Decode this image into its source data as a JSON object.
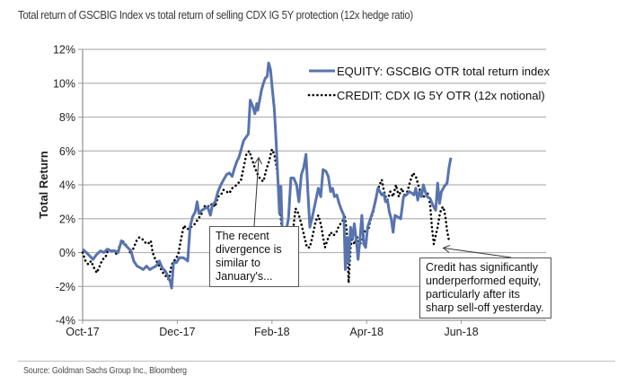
{
  "chart_data": {
    "type": "line",
    "title": "Total return of GSCBIG Index vs total return of selling CDX IG 5Y protection (12x hedge ratio)",
    "xlabel": "",
    "ylabel": "Total Return",
    "x_unit": "months since Oct-17",
    "xlim": [
      0,
      8.4
    ],
    "ylim": [
      -4,
      12
    ],
    "y_ticks": [
      -4,
      -2,
      0,
      2,
      4,
      6,
      8,
      10,
      12
    ],
    "y_tick_labels": [
      "-4%",
      "-2%",
      "0%",
      "2%",
      "4%",
      "6%",
      "8%",
      "10%",
      "12%"
    ],
    "x_ticks": [
      0,
      2,
      4,
      6,
      8
    ],
    "x_tick_labels": [
      "Oct-17",
      "Dec-17",
      "Feb-18",
      "Apr-18",
      "Jun-18"
    ],
    "grid": true,
    "legend_position": "top-right",
    "series": [
      {
        "name": "EQUITY: GSCBIG OTR total return index",
        "style": "solid",
        "color": "#5873AE",
        "points": [
          [
            0.0,
            0.2
          ],
          [
            0.08,
            0.0
          ],
          [
            0.15,
            -0.2
          ],
          [
            0.22,
            -0.4
          ],
          [
            0.3,
            -0.1
          ],
          [
            0.38,
            0.1
          ],
          [
            0.45,
            0.0
          ],
          [
            0.52,
            0.2
          ],
          [
            0.6,
            0.1
          ],
          [
            0.68,
            0.1
          ],
          [
            0.75,
            0.0
          ],
          [
            0.82,
            0.7
          ],
          [
            0.88,
            0.5
          ],
          [
            0.95,
            0.3
          ],
          [
            1.02,
            0.1
          ],
          [
            1.08,
            -0.5
          ],
          [
            1.15,
            -0.8
          ],
          [
            1.22,
            -0.9
          ],
          [
            1.28,
            -1.0
          ],
          [
            1.35,
            -0.8
          ],
          [
            1.42,
            -1.0
          ],
          [
            1.48,
            -0.9
          ],
          [
            1.55,
            -0.8
          ],
          [
            1.62,
            -0.5
          ],
          [
            1.68,
            -0.9
          ],
          [
            1.75,
            -1.1
          ],
          [
            1.8,
            -1.4
          ],
          [
            1.85,
            -1.7
          ],
          [
            1.88,
            -2.1
          ],
          [
            1.92,
            -0.6
          ],
          [
            1.98,
            -0.6
          ],
          [
            2.05,
            -0.3
          ],
          [
            2.12,
            -0.3
          ],
          [
            2.18,
            -0.4
          ],
          [
            2.22,
            -0.5
          ],
          [
            2.27,
            1.5
          ],
          [
            2.32,
            2.1
          ],
          [
            2.38,
            2.4
          ],
          [
            2.42,
            3.0
          ],
          [
            2.46,
            2.3
          ],
          [
            2.52,
            2.5
          ],
          [
            2.58,
            2.6
          ],
          [
            2.64,
            2.7
          ],
          [
            2.7,
            2.2
          ],
          [
            2.74,
            2.8
          ],
          [
            2.8,
            3.0
          ],
          [
            2.86,
            3.6
          ],
          [
            2.92,
            4.0
          ],
          [
            2.98,
            4.3
          ],
          [
            3.04,
            4.6
          ],
          [
            3.1,
            4.7
          ],
          [
            3.16,
            4.5
          ],
          [
            3.2,
            4.9
          ],
          [
            3.26,
            5.4
          ],
          [
            3.3,
            5.6
          ],
          [
            3.36,
            6.2
          ],
          [
            3.4,
            6.6
          ],
          [
            3.45,
            6.8
          ],
          [
            3.5,
            7.0
          ],
          [
            3.54,
            9.0
          ],
          [
            3.6,
            8.6
          ],
          [
            3.64,
            8.2
          ],
          [
            3.68,
            8.8
          ],
          [
            3.7,
            8.4
          ],
          [
            3.74,
            9.0
          ],
          [
            3.78,
            9.6
          ],
          [
            3.82,
            10.0
          ],
          [
            3.86,
            10.3
          ],
          [
            3.9,
            10.4
          ],
          [
            3.93,
            11.2
          ],
          [
            3.97,
            10.8
          ],
          [
            4.01,
            9.6
          ],
          [
            4.05,
            8.5
          ],
          [
            4.09,
            6.5
          ],
          [
            4.13,
            4.0
          ],
          [
            4.16,
            2.3
          ],
          [
            4.19,
            3.9
          ],
          [
            4.22,
            1.0
          ],
          [
            4.25,
            0.5
          ],
          [
            4.3,
            1.3
          ],
          [
            4.35,
            2.0
          ],
          [
            4.4,
            4.4
          ],
          [
            4.46,
            4.4
          ],
          [
            4.52,
            4.0
          ],
          [
            4.57,
            3.0
          ],
          [
            4.62,
            4.6
          ],
          [
            4.67,
            5.0
          ],
          [
            4.72,
            5.8
          ],
          [
            4.76,
            3.5
          ],
          [
            4.8,
            1.5
          ],
          [
            4.86,
            2.2
          ],
          [
            4.92,
            3.0
          ],
          [
            4.98,
            3.8
          ],
          [
            5.03,
            3.3
          ],
          [
            5.08,
            4.9
          ],
          [
            5.14,
            4.8
          ],
          [
            5.19,
            4.5
          ],
          [
            5.24,
            3.6
          ],
          [
            5.28,
            3.8
          ],
          [
            5.32,
            3.3
          ],
          [
            5.37,
            3.4
          ],
          [
            5.42,
            2.9
          ],
          [
            5.47,
            2.5
          ],
          [
            5.52,
            2.2
          ],
          [
            5.55,
            -1.0
          ],
          [
            5.59,
            0.9
          ],
          [
            5.62,
            -0.6
          ],
          [
            5.66,
            1.5
          ],
          [
            5.7,
            0.8
          ],
          [
            5.74,
            1.7
          ],
          [
            5.78,
            0.8
          ],
          [
            5.82,
            -0.4
          ],
          [
            5.86,
            0.8
          ],
          [
            5.9,
            2.2
          ],
          [
            5.94,
            0.5
          ],
          [
            5.98,
            0.3
          ],
          [
            6.02,
            1.5
          ],
          [
            6.08,
            2.0
          ],
          [
            6.14,
            2.5
          ],
          [
            6.2,
            3.2
          ],
          [
            6.24,
            3.8
          ],
          [
            6.28,
            3.6
          ],
          [
            6.32,
            3.4
          ],
          [
            6.36,
            3.5
          ],
          [
            6.4,
            3.0
          ],
          [
            6.44,
            3.1
          ],
          [
            6.48,
            2.4
          ],
          [
            6.52,
            2.0
          ],
          [
            6.56,
            1.2
          ],
          [
            6.6,
            2.2
          ],
          [
            6.66,
            2.1
          ],
          [
            6.72,
            2.0
          ],
          [
            6.78,
            3.3
          ],
          [
            6.84,
            3.4
          ],
          [
            6.9,
            3.6
          ],
          [
            6.96,
            3.5
          ],
          [
            7.0,
            3.4
          ],
          [
            7.04,
            3.8
          ],
          [
            7.08,
            3.1
          ],
          [
            7.12,
            3.6
          ],
          [
            7.16,
            3.3
          ],
          [
            7.2,
            4.0
          ],
          [
            7.24,
            3.6
          ],
          [
            7.28,
            3.3
          ],
          [
            7.34,
            3.2
          ],
          [
            7.4,
            2.8
          ],
          [
            7.46,
            2.5
          ],
          [
            7.5,
            4.1
          ],
          [
            7.54,
            2.9
          ],
          [
            7.58,
            3.6
          ],
          [
            7.64,
            3.9
          ],
          [
            7.7,
            4.1
          ],
          [
            7.74,
            5.0
          ],
          [
            7.78,
            5.6
          ]
        ]
      },
      {
        "name": "CREDIT: CDX IG 5Y OTR (12x notional)",
        "style": "dotted",
        "color": "#000000",
        "points": [
          [
            0.0,
            0.0
          ],
          [
            0.06,
            -0.5
          ],
          [
            0.12,
            -0.7
          ],
          [
            0.18,
            -0.5
          ],
          [
            0.24,
            -0.9
          ],
          [
            0.3,
            -1.2
          ],
          [
            0.36,
            -0.8
          ],
          [
            0.42,
            -0.4
          ],
          [
            0.48,
            -0.3
          ],
          [
            0.54,
            0.2
          ],
          [
            0.6,
            0.1
          ],
          [
            0.66,
            0.1
          ],
          [
            0.72,
            -0.1
          ],
          [
            0.78,
            0.4
          ],
          [
            0.84,
            0.7
          ],
          [
            0.9,
            0.5
          ],
          [
            0.96,
            0.3
          ],
          [
            1.02,
            -0.1
          ],
          [
            1.08,
            0.3
          ],
          [
            1.14,
            0.7
          ],
          [
            1.2,
            0.9
          ],
          [
            1.26,
            0.8
          ],
          [
            1.32,
            0.6
          ],
          [
            1.38,
            0.5
          ],
          [
            1.44,
            0.7
          ],
          [
            1.48,
            0.0
          ],
          [
            1.52,
            -0.3
          ],
          [
            1.58,
            -0.6
          ],
          [
            1.64,
            -0.9
          ],
          [
            1.7,
            -1.2
          ],
          [
            1.76,
            -1.4
          ],
          [
            1.82,
            -1.6
          ],
          [
            1.86,
            -1.0
          ],
          [
            1.9,
            -0.6
          ],
          [
            1.96,
            -0.4
          ],
          [
            2.02,
            -0.1
          ],
          [
            2.08,
            0.8
          ],
          [
            2.14,
            1.6
          ],
          [
            2.2,
            1.4
          ],
          [
            2.26,
            1.4
          ],
          [
            2.32,
            1.6
          ],
          [
            2.38,
            1.7
          ],
          [
            2.44,
            2.0
          ],
          [
            2.5,
            2.2
          ],
          [
            2.56,
            2.7
          ],
          [
            2.62,
            2.8
          ],
          [
            2.68,
            2.7
          ],
          [
            2.74,
            2.9
          ],
          [
            2.8,
            2.7
          ],
          [
            2.86,
            3.3
          ],
          [
            2.92,
            3.4
          ],
          [
            2.98,
            3.7
          ],
          [
            3.04,
            3.6
          ],
          [
            3.1,
            3.5
          ],
          [
            3.16,
            3.8
          ],
          [
            3.22,
            3.9
          ],
          [
            3.28,
            4.1
          ],
          [
            3.34,
            4.2
          ],
          [
            3.4,
            5.0
          ],
          [
            3.46,
            5.8
          ],
          [
            3.52,
            6.0
          ],
          [
            3.58,
            5.5
          ],
          [
            3.64,
            5.0
          ],
          [
            3.7,
            4.6
          ],
          [
            3.76,
            4.3
          ],
          [
            3.82,
            4.2
          ],
          [
            3.88,
            4.9
          ],
          [
            3.94,
            5.4
          ],
          [
            4.0,
            6.1
          ],
          [
            4.05,
            5.8
          ],
          [
            4.1,
            5.0
          ],
          [
            4.15,
            3.6
          ],
          [
            4.19,
            1.9
          ],
          [
            4.22,
            1.0
          ],
          [
            4.25,
            0.4
          ],
          [
            4.28,
            -1.9
          ],
          [
            4.32,
            -1.6
          ],
          [
            4.36,
            0.0
          ],
          [
            4.4,
            0.7
          ],
          [
            4.45,
            1.4
          ],
          [
            4.5,
            2.6
          ],
          [
            4.56,
            2.3
          ],
          [
            4.62,
            1.7
          ],
          [
            4.68,
            1.0
          ],
          [
            4.74,
            0.3
          ],
          [
            4.8,
            0.3
          ],
          [
            4.86,
            1.0
          ],
          [
            4.92,
            1.8
          ],
          [
            4.98,
            2.2
          ],
          [
            5.04,
            1.6
          ],
          [
            5.08,
            0.9
          ],
          [
            5.12,
            0.3
          ],
          [
            5.18,
            0.8
          ],
          [
            5.24,
            1.2
          ],
          [
            5.3,
            1.0
          ],
          [
            5.36,
            1.2
          ],
          [
            5.42,
            1.6
          ],
          [
            5.48,
            1.8
          ],
          [
            5.54,
            2.1
          ],
          [
            5.58,
            1.3
          ],
          [
            5.62,
            -1.8
          ],
          [
            5.66,
            0.3
          ],
          [
            5.7,
            0.9
          ],
          [
            5.74,
            0.5
          ],
          [
            5.8,
            0.9
          ],
          [
            5.86,
            0.5
          ],
          [
            5.92,
            0.8
          ],
          [
            5.96,
            1.3
          ],
          [
            6.0,
            1.2
          ],
          [
            6.04,
            1.4
          ],
          [
            6.08,
            1.9
          ],
          [
            6.14,
            2.4
          ],
          [
            6.2,
            3.3
          ],
          [
            6.26,
            3.9
          ],
          [
            6.32,
            4.3
          ],
          [
            6.36,
            3.7
          ],
          [
            6.4,
            3.3
          ],
          [
            6.44,
            3.1
          ],
          [
            6.5,
            3.6
          ],
          [
            6.56,
            3.3
          ],
          [
            6.62,
            4.0
          ],
          [
            6.68,
            3.3
          ],
          [
            6.74,
            3.8
          ],
          [
            6.8,
            3.4
          ],
          [
            6.86,
            3.6
          ],
          [
            6.92,
            4.2
          ],
          [
            6.98,
            4.7
          ],
          [
            7.04,
            4.5
          ],
          [
            7.1,
            3.9
          ],
          [
            7.16,
            3.4
          ],
          [
            7.22,
            3.3
          ],
          [
            7.28,
            3.6
          ],
          [
            7.34,
            2.9
          ],
          [
            7.38,
            1.5
          ],
          [
            7.42,
            0.5
          ],
          [
            7.46,
            1.0
          ],
          [
            7.5,
            1.5
          ],
          [
            7.54,
            2.2
          ],
          [
            7.58,
            2.6
          ],
          [
            7.62,
            2.7
          ],
          [
            7.66,
            2.2
          ],
          [
            7.7,
            1.3
          ],
          [
            7.74,
            0.7
          ]
        ]
      }
    ],
    "annotations": [
      {
        "id": "annotation-divergence",
        "lines": [
          "The recent",
          "divergence is",
          "similar to",
          "January's..."
        ],
        "points_to": [
          3.72,
          5.6
        ]
      },
      {
        "id": "annotation-credit",
        "lines": [
          "Credit has significantly",
          "underperformed equity,",
          "particularly after its",
          "sharp sell-off yesterday."
        ],
        "points_to": [
          7.62,
          0.8
        ]
      }
    ]
  },
  "footer": {
    "source": "Source: Goldman Sachs Group Inc., Bloomberg"
  }
}
